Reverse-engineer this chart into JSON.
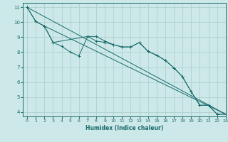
{
  "bg_color": "#cce8e8",
  "grid_color": "#aacccc",
  "line_color": "#1a6b6b",
  "xlabel": "Humidex (Indice chaleur)",
  "xlim": [
    -0.5,
    23
  ],
  "ylim": [
    3.7,
    11.3
  ],
  "yticks": [
    4,
    5,
    6,
    7,
    8,
    9,
    10,
    11
  ],
  "xticks": [
    0,
    1,
    2,
    3,
    4,
    5,
    6,
    7,
    8,
    9,
    10,
    11,
    12,
    13,
    14,
    15,
    16,
    17,
    18,
    19,
    20,
    21,
    22,
    23
  ],
  "series_with_markers": [
    {
      "x": [
        0,
        1,
        2,
        3,
        4,
        5,
        6,
        7,
        8,
        9,
        10,
        11,
        12,
        13,
        14,
        15,
        16,
        17,
        18,
        19,
        20,
        21,
        22,
        23
      ],
      "y": [
        11.0,
        10.05,
        9.75,
        8.65,
        8.4,
        8.0,
        7.75,
        9.05,
        9.05,
        8.75,
        8.5,
        8.35,
        8.35,
        8.65,
        8.05,
        7.8,
        7.45,
        6.95,
        6.35,
        5.35,
        4.45,
        4.45,
        3.85,
        3.85
      ]
    },
    {
      "x": [
        0,
        1,
        2,
        3,
        7,
        8,
        9,
        10,
        11,
        12,
        13,
        14,
        15,
        16,
        17,
        18,
        19,
        20,
        21,
        22,
        23
      ],
      "y": [
        11.0,
        10.05,
        9.75,
        8.65,
        9.05,
        8.75,
        8.65,
        8.5,
        8.35,
        8.35,
        8.65,
        8.05,
        7.8,
        7.45,
        6.95,
        6.35,
        5.35,
        4.45,
        4.45,
        3.85,
        3.85
      ]
    }
  ],
  "series_lines": [
    {
      "x": [
        0,
        23
      ],
      "y": [
        11.0,
        3.85
      ]
    },
    {
      "x": [
        2,
        23
      ],
      "y": [
        9.75,
        3.85
      ]
    }
  ]
}
